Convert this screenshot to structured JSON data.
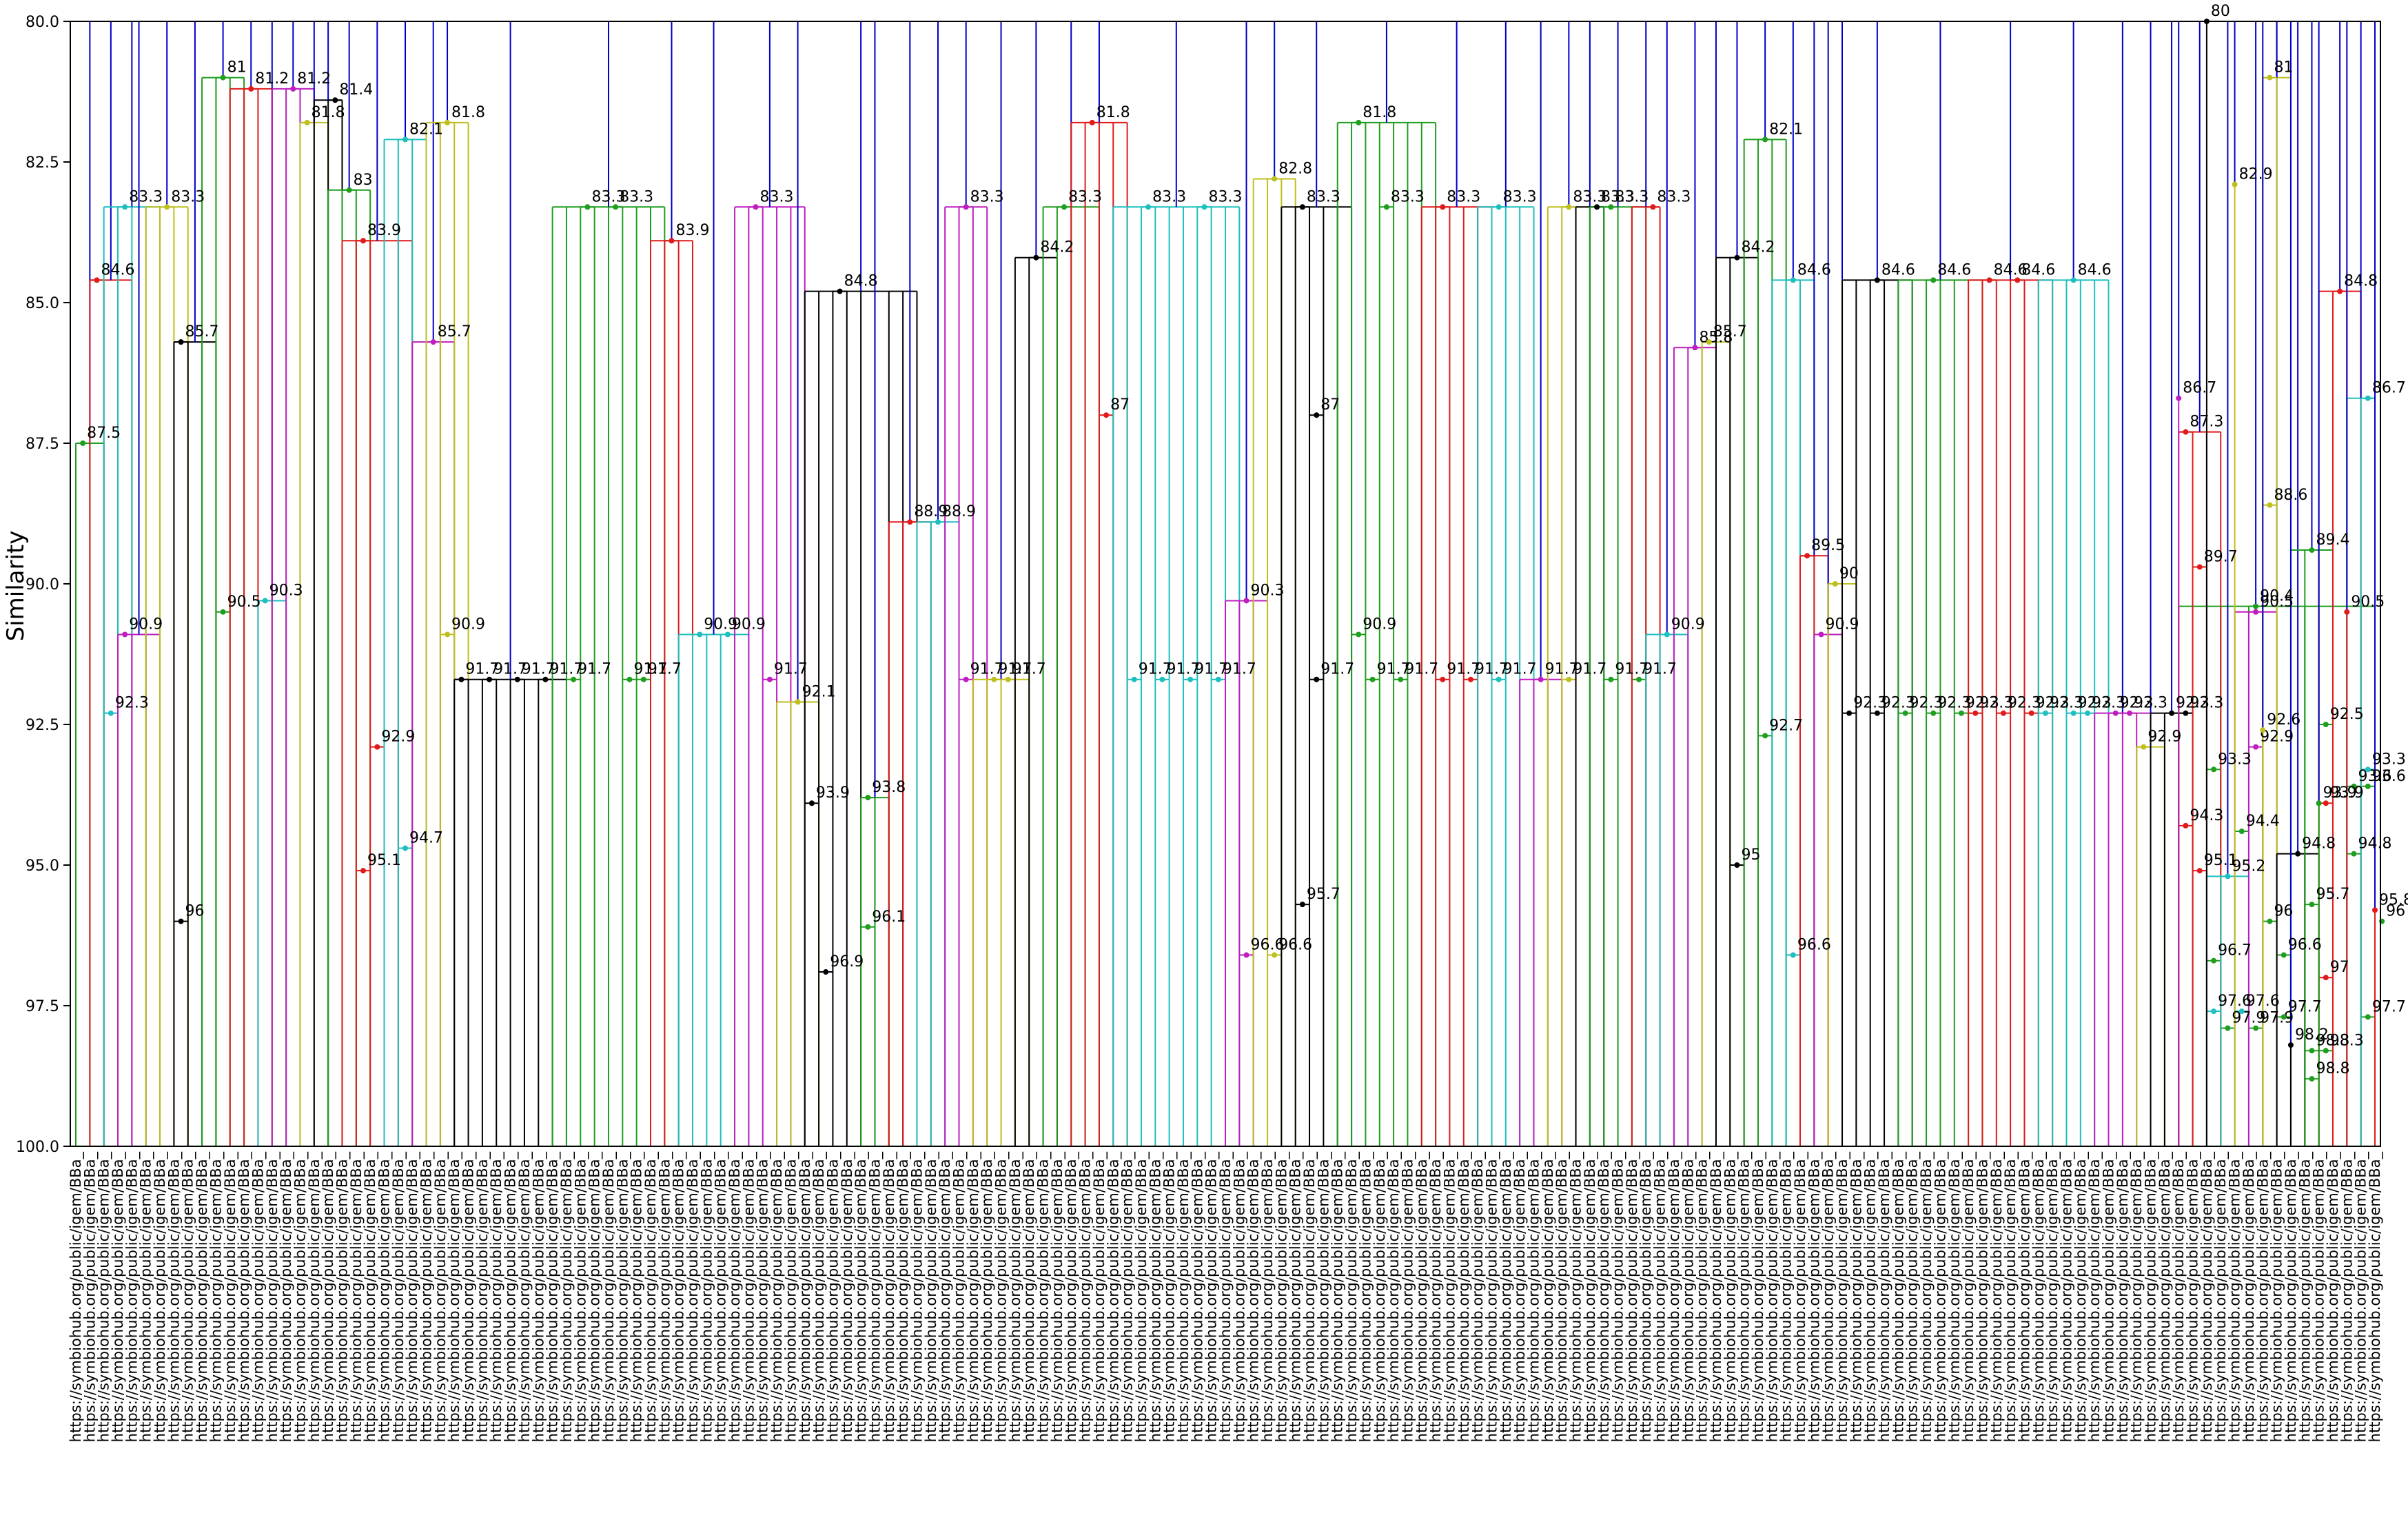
{
  "chart_data": {
    "type": "dendrogram",
    "title": "",
    "ylabel": "Similarity",
    "xlabel": "",
    "ylim": [
      80.0,
      100.0
    ],
    "y_inverted": true,
    "yticks": [
      "80.0",
      "82.5",
      "85.0",
      "87.5",
      "90.0",
      "92.5",
      "95.0",
      "97.5",
      "100.0"
    ],
    "leaf_count": 165,
    "leaf_label_prefix": "https://symbiohub.org/public/igem/BBa_",
    "link_colors": {
      "top": "#0000cc",
      "C0": "#1f9e1f",
      "C1": "#e01b1b",
      "C2": "#1fbfbf",
      "C3": "#bf1fbf",
      "C4": "#bfbf1f",
      "C5": "#000000"
    },
    "groups": [
      {
        "start": 0,
        "end": 2,
        "color": "C0",
        "height": 87.5,
        "nodes": [
          [
            0,
            87.5
          ]
        ]
      },
      {
        "start": 1,
        "end": 4,
        "color": "C1",
        "height": 84.6,
        "nodes": [
          [
            1,
            84.6
          ]
        ]
      },
      {
        "start": 2,
        "end": 6,
        "color": "C2",
        "height": 83.3,
        "nodes": [
          [
            3,
            83.3
          ],
          [
            2,
            92.3
          ]
        ]
      },
      {
        "start": 3,
        "end": 6,
        "color": "C3",
        "height": 90.9,
        "nodes": [
          [
            3,
            90.9
          ]
        ]
      },
      {
        "start": 5,
        "end": 8,
        "color": "C4",
        "height": 83.3,
        "nodes": [
          [
            6,
            83.3
          ]
        ]
      },
      {
        "start": 7,
        "end": 10,
        "color": "C5",
        "height": 85.7,
        "nodes": [
          [
            7,
            85.7
          ],
          [
            7,
            96
          ]
        ]
      },
      {
        "start": 9,
        "end": 12,
        "color": "C0",
        "height": 81.0,
        "nodes": [
          [
            10,
            81
          ],
          [
            10,
            90.5
          ]
        ]
      },
      {
        "start": 11,
        "end": 14,
        "color": "C1",
        "height": 81.2,
        "nodes": [
          [
            12,
            81.2
          ]
        ]
      },
      {
        "start": 13,
        "end": 15,
        "color": "C2",
        "height": 90.3,
        "nodes": [
          [
            13,
            90.3
          ]
        ]
      },
      {
        "start": 14,
        "end": 17,
        "color": "C3",
        "height": 81.2,
        "nodes": [
          [
            15,
            81.2
          ]
        ]
      },
      {
        "start": 16,
        "end": 18,
        "color": "C4",
        "height": 81.8,
        "nodes": [
          [
            16,
            81.8
          ]
        ]
      },
      {
        "start": 17,
        "end": 19,
        "color": "C5",
        "height": 81.4,
        "nodes": [
          [
            18,
            81.4
          ]
        ]
      },
      {
        "start": 18,
        "end": 21,
        "color": "C0",
        "height": 83.0,
        "nodes": [
          [
            19,
            83
          ]
        ]
      },
      {
        "start": 19,
        "end": 24,
        "color": "C1",
        "height": 83.9,
        "nodes": [
          [
            20,
            83.9
          ],
          [
            21,
            92.9
          ],
          [
            20,
            95.1
          ]
        ]
      },
      {
        "start": 22,
        "end": 25,
        "color": "C2",
        "height": 82.1,
        "nodes": [
          [
            23,
            82.1
          ],
          [
            23,
            94.7
          ]
        ]
      },
      {
        "start": 24,
        "end": 27,
        "color": "C3",
        "height": 85.7,
        "nodes": [
          [
            25,
            85.7
          ]
        ]
      },
      {
        "start": 25,
        "end": 28,
        "color": "C4",
        "height": 81.8,
        "nodes": [
          [
            26,
            81.8
          ],
          [
            26,
            90.9
          ]
        ]
      },
      {
        "start": 27,
        "end": 35,
        "color": "C5",
        "height": 91.7,
        "nodes": [
          [
            27,
            91.7
          ],
          [
            29,
            91.7
          ],
          [
            31,
            91.7
          ],
          [
            33,
            91.7
          ]
        ]
      },
      {
        "start": 34,
        "end": 42,
        "color": "C0",
        "height": 83.3,
        "nodes": [
          [
            36,
            83.3
          ],
          [
            38,
            83.3
          ],
          [
            35,
            91.7
          ],
          [
            39,
            91.7
          ],
          [
            40,
            91.7
          ]
        ]
      },
      {
        "start": 41,
        "end": 44,
        "color": "C1",
        "height": 83.9,
        "nodes": [
          [
            42,
            83.9
          ]
        ]
      },
      {
        "start": 43,
        "end": 48,
        "color": "C2",
        "height": 90.9,
        "nodes": [
          [
            44,
            90.9
          ],
          [
            46,
            90.9
          ]
        ]
      },
      {
        "start": 47,
        "end": 52,
        "color": "C3",
        "height": 83.3,
        "nodes": [
          [
            48,
            83.3
          ],
          [
            49,
            91.7
          ]
        ]
      },
      {
        "start": 50,
        "end": 53,
        "color": "C4",
        "height": 92.1,
        "nodes": [
          [
            51,
            92.1
          ]
        ]
      },
      {
        "start": 52,
        "end": 60,
        "color": "C5",
        "height": 84.8,
        "nodes": [
          [
            54,
            84.8
          ],
          [
            52,
            93.9
          ],
          [
            53,
            96.9
          ]
        ]
      },
      {
        "start": 56,
        "end": 58,
        "color": "C0",
        "height": 93.8,
        "nodes": [
          [
            56,
            93.8
          ],
          [
            56,
            96.1
          ]
        ]
      },
      {
        "start": 58,
        "end": 61,
        "color": "C1",
        "height": 88.9,
        "nodes": [
          [
            59,
            88.9
          ]
        ]
      },
      {
        "start": 60,
        "end": 63,
        "color": "C2",
        "height": 88.9,
        "nodes": [
          [
            61,
            88.9
          ]
        ]
      },
      {
        "start": 62,
        "end": 65,
        "color": "C3",
        "height": 83.3,
        "nodes": [
          [
            63,
            83.3
          ],
          [
            63,
            91.7
          ]
        ]
      },
      {
        "start": 64,
        "end": 68,
        "color": "C4",
        "height": 91.7,
        "nodes": [
          [
            65,
            91.7
          ],
          [
            66,
            91.7
          ]
        ]
      },
      {
        "start": 67,
        "end": 70,
        "color": "C5",
        "height": 84.2,
        "nodes": [
          [
            68,
            84.2
          ]
        ]
      },
      {
        "start": 69,
        "end": 73,
        "color": "C0",
        "height": 83.3,
        "nodes": [
          [
            70,
            83.3
          ]
        ]
      },
      {
        "start": 71,
        "end": 75,
        "color": "C1",
        "height": 81.8,
        "nodes": [
          [
            72,
            81.8
          ],
          [
            73,
            87
          ]
        ]
      },
      {
        "start": 74,
        "end": 83,
        "color": "C2",
        "height": 83.3,
        "nodes": [
          [
            76,
            83.3
          ],
          [
            80,
            83.3
          ],
          [
            75,
            91.7
          ],
          [
            77,
            91.7
          ],
          [
            79,
            91.7
          ],
          [
            81,
            91.7
          ]
        ]
      },
      {
        "start": 82,
        "end": 85,
        "color": "C3",
        "height": 90.3,
        "nodes": [
          [
            83,
            90.3
          ],
          [
            83,
            96.6
          ]
        ]
      },
      {
        "start": 84,
        "end": 87,
        "color": "C4",
        "height": 82.8,
        "nodes": [
          [
            85,
            82.8
          ],
          [
            85,
            96.6
          ]
        ]
      },
      {
        "start": 86,
        "end": 91,
        "color": "C5",
        "height": 83.3,
        "nodes": [
          [
            87,
            83.3
          ],
          [
            88,
            87
          ],
          [
            88,
            91.7
          ],
          [
            87,
            95.7
          ]
        ]
      },
      {
        "start": 90,
        "end": 97,
        "color": "C0",
        "height": 81.8,
        "nodes": [
          [
            91,
            81.8
          ],
          [
            93,
            83.3
          ],
          [
            91,
            90.9
          ],
          [
            92,
            91.7
          ],
          [
            94,
            91.7
          ]
        ]
      },
      {
        "start": 96,
        "end": 101,
        "color": "C1",
        "height": 83.3,
        "nodes": [
          [
            97,
            83.3
          ],
          [
            97,
            91.7
          ],
          [
            99,
            91.7
          ]
        ]
      },
      {
        "start": 100,
        "end": 104,
        "color": "C2",
        "height": 83.3,
        "nodes": [
          [
            101,
            83.3
          ],
          [
            101,
            91.7
          ]
        ]
      },
      {
        "start": 103,
        "end": 106,
        "color": "C3",
        "height": 91.7,
        "nodes": [
          [
            104,
            91.7
          ]
        ]
      },
      {
        "start": 105,
        "end": 108,
        "color": "C4",
        "height": 83.3,
        "nodes": [
          [
            106,
            83.3
          ],
          [
            106,
            91.7
          ]
        ]
      },
      {
        "start": 107,
        "end": 109,
        "color": "C5",
        "height": 83.3,
        "nodes": [
          [
            108,
            83.3
          ]
        ]
      },
      {
        "start": 108,
        "end": 112,
        "color": "C0",
        "height": 83.3,
        "nodes": [
          [
            109,
            83.3
          ],
          [
            109,
            91.7
          ],
          [
            111,
            91.7
          ]
        ]
      },
      {
        "start": 111,
        "end": 113,
        "color": "C1",
        "height": 83.3,
        "nodes": [
          [
            112,
            83.3
          ]
        ]
      },
      {
        "start": 112,
        "end": 115,
        "color": "C2",
        "height": 90.9,
        "nodes": [
          [
            113,
            90.9
          ]
        ]
      },
      {
        "start": 114,
        "end": 117,
        "color": "C3",
        "height": 85.8,
        "nodes": [
          [
            115,
            85.8
          ]
        ]
      },
      {
        "start": 116,
        "end": 118,
        "color": "C4",
        "height": 85.7,
        "nodes": [
          [
            116,
            85.7
          ]
        ]
      },
      {
        "start": 117,
        "end": 120,
        "color": "C5",
        "height": 84.2,
        "nodes": [
          [
            118,
            84.2
          ],
          [
            118,
            95
          ]
        ]
      },
      {
        "start": 119,
        "end": 122,
        "color": "C0",
        "height": 82.1,
        "nodes": [
          [
            120,
            82.1
          ],
          [
            120,
            92.7
          ]
        ]
      },
      {
        "start": 121,
        "end": 124,
        "color": "C2",
        "height": 84.6,
        "nodes": [
          [
            122,
            84.6
          ],
          [
            122,
            96.6
          ]
        ]
      },
      {
        "start": 123,
        "end": 125,
        "color": "C1",
        "height": 89.5,
        "nodes": [
          [
            123,
            89.5
          ]
        ]
      },
      {
        "start": 124,
        "end": 126,
        "color": "C3",
        "height": 90.9,
        "nodes": [
          [
            124,
            90.9
          ]
        ]
      },
      {
        "start": 125,
        "end": 127,
        "color": "C4",
        "height": 90.0,
        "nodes": [
          [
            125,
            90
          ]
        ]
      },
      {
        "start": 126,
        "end": 131,
        "color": "C5",
        "height": 84.6,
        "nodes": [
          [
            128,
            84.6
          ],
          [
            126,
            92.3
          ],
          [
            128,
            92.3
          ]
        ]
      },
      {
        "start": 130,
        "end": 136,
        "color": "C0",
        "height": 84.6,
        "nodes": [
          [
            132,
            84.6
          ],
          [
            130,
            92.3
          ],
          [
            132,
            92.3
          ],
          [
            134,
            92.3
          ]
        ]
      },
      {
        "start": 135,
        "end": 141,
        "color": "C1",
        "height": 84.6,
        "nodes": [
          [
            136,
            84.6
          ],
          [
            138,
            84.6
          ],
          [
            135,
            92.3
          ],
          [
            137,
            92.3
          ],
          [
            139,
            92.3
          ]
        ]
      },
      {
        "start": 140,
        "end": 145,
        "color": "C2",
        "height": 84.6,
        "nodes": [
          [
            142,
            84.6
          ],
          [
            140,
            92.3
          ],
          [
            142,
            92.3
          ],
          [
            143,
            92.3
          ]
        ]
      },
      {
        "start": 144,
        "end": 148,
        "color": "C3",
        "height": 92.3,
        "nodes": [
          [
            145,
            92.3
          ],
          [
            146,
            92.3
          ]
        ]
      },
      {
        "start": 147,
        "end": 149,
        "color": "C4",
        "height": 92.9,
        "nodes": [
          [
            147,
            92.9
          ]
        ]
      },
      {
        "start": 148,
        "end": 151,
        "color": "C5",
        "height": 92.3,
        "nodes": [
          [
            149,
            92.3
          ],
          [
            150,
            92.3
          ]
        ]
      },
      {
        "start": 150,
        "end": 165,
        "color": "C0",
        "height": 90.4,
        "nodes": [
          [
            155,
            90.4
          ],
          [
            160,
            92.5
          ],
          [
            152,
            93.3
          ],
          [
            154,
            94.4
          ],
          [
            152,
            96.7
          ],
          [
            156,
            96
          ],
          [
            157,
            96.6
          ],
          [
            153,
            97.9
          ],
          [
            155,
            97.9
          ],
          [
            157,
            97.7
          ],
          [
            162,
            93.6
          ],
          [
            163,
            93.6
          ],
          [
            162,
            94.8
          ],
          [
            164,
            96
          ],
          [
            163,
            97.7
          ],
          [
            159,
            98.3
          ],
          [
            160,
            98.3
          ],
          [
            159,
            98.8
          ]
        ]
      }
    ],
    "extra_clusters": [
      {
        "start": 150,
        "end": 153,
        "color": "C1",
        "height": 87.3,
        "nodes": [
          [
            150,
            87.3
          ],
          [
            151,
            89.7
          ],
          [
            150,
            94.3
          ],
          [
            151,
            95.1
          ]
        ]
      },
      {
        "start": 152,
        "end": 155,
        "color": "C2",
        "height": 95.2,
        "nodes": [
          [
            153,
            95.2
          ],
          [
            152,
            97.6
          ],
          [
            154,
            97.6
          ]
        ]
      },
      {
        "start": 154,
        "end": 157,
        "color": "C3",
        "height": 90.5,
        "nodes": [
          [
            155,
            90.5
          ],
          [
            155,
            92.9
          ]
        ]
      },
      {
        "start": 156,
        "end": 158,
        "color": "C4",
        "height": 81.0,
        "nodes": [
          [
            156,
            81
          ],
          [
            156,
            88.6
          ]
        ]
      },
      {
        "start": 157,
        "end": 160,
        "color": "C5",
        "height": 94.8,
        "nodes": [
          [
            158,
            94.8
          ]
        ]
      },
      {
        "start": 158,
        "end": 161,
        "color": "C0",
        "height": 89.4,
        "nodes": [
          [
            159,
            89.4
          ],
          [
            159,
            95.7
          ]
        ]
      },
      {
        "start": 160,
        "end": 163,
        "color": "C1",
        "height": 84.8,
        "nodes": [
          [
            161,
            84.8
          ],
          [
            160,
            93.9
          ],
          [
            160,
            97
          ]
        ]
      },
      {
        "start": 162,
        "end": 165,
        "color": "C2",
        "height": 86.7,
        "nodes": [
          [
            163,
            86.7
          ],
          [
            163,
            93.3
          ]
        ]
      }
    ],
    "tail_nodes": [
      {
        "color": "C3",
        "label": "86.7",
        "value": 86.7
      },
      {
        "color": "C5",
        "label": "80",
        "value": 80.0
      },
      {
        "color": "C4",
        "label": "82.9",
        "value": 82.9
      },
      {
        "color": "C4",
        "label": "92.6",
        "value": 92.6
      },
      {
        "color": "C5",
        "label": "98.2",
        "value": 98.2
      },
      {
        "color": "C0",
        "label": "93.9",
        "value": 93.9
      },
      {
        "color": "C1",
        "label": "90.5",
        "value": 90.5
      },
      {
        "color": "C1",
        "label": "95.8",
        "value": 95.8
      }
    ]
  }
}
